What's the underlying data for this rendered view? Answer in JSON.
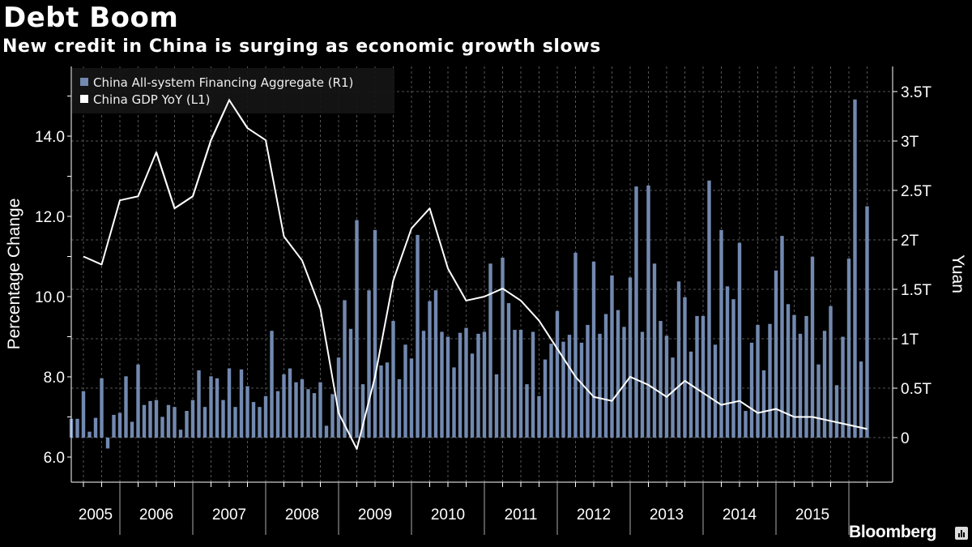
{
  "chart_data": {
    "type": "bar+line",
    "title": "Debt Boom",
    "subtitle": "New credit in China is surging as economic growth slows",
    "source": "Bloomberg",
    "xlabel": "",
    "ylabel_left": "Percentage Change",
    "ylabel_right": "Yuan",
    "ylim_left": [
      5.4,
      15.7
    ],
    "ylim_right": [
      -0.45,
      3.75
    ],
    "left_ticks": [
      "6.0",
      "8.0",
      "10.0",
      "12.0",
      "14.0"
    ],
    "left_tick_values": [
      6,
      8,
      10,
      12,
      14
    ],
    "right_ticks": [
      "0",
      "0.5T",
      "1T",
      "1.5T",
      "2T",
      "2.5T",
      "3T",
      "3.5T"
    ],
    "right_tick_values": [
      0,
      0.5,
      1,
      1.5,
      2,
      2.5,
      3,
      3.5
    ],
    "x_ticks": [
      "2005",
      "2006",
      "2007",
      "2008",
      "2009",
      "2010",
      "2011",
      "2012",
      "2013",
      "2014",
      "2015"
    ],
    "grid": true,
    "legend_position": "top-left",
    "series": [
      {
        "name": "China All-system Financing Aggregate  (R1)",
        "type": "bar",
        "axis": "right",
        "unit": "trillion yuan",
        "frequency": "monthly",
        "start": "2005-04",
        "color": "#7289b0",
        "values": [
          0.19,
          0.19,
          0.47,
          0.06,
          0.2,
          0.6,
          -0.11,
          0.23,
          0.25,
          0.62,
          0.16,
          0.74,
          0.33,
          0.37,
          0.38,
          0.21,
          0.33,
          0.31,
          0.08,
          0.27,
          0.38,
          0.68,
          0.31,
          0.62,
          0.6,
          0.38,
          0.7,
          0.31,
          0.69,
          0.52,
          0.36,
          0.31,
          0.42,
          1.08,
          0.47,
          0.64,
          0.7,
          0.56,
          0.59,
          0.49,
          0.45,
          0.56,
          0.12,
          0.44,
          0.81,
          1.39,
          1.1,
          2.2,
          0.54,
          1.49,
          2.1,
          0.73,
          0.76,
          1.18,
          0.59,
          0.94,
          0.8,
          2.05,
          1.08,
          1.38,
          1.49,
          1.07,
          1.02,
          0.71,
          1.06,
          1.11,
          0.85,
          1.05,
          1.07,
          1.76,
          0.64,
          1.82,
          1.36,
          1.09,
          1.09,
          0.54,
          1.07,
          0.42,
          0.79,
          0.95,
          1.28,
          0.97,
          1.04,
          1.87,
          0.96,
          1.14,
          1.78,
          1.05,
          1.25,
          1.64,
          1.29,
          1.12,
          1.62,
          2.54,
          1.07,
          2.55,
          1.76,
          1.18,
          1.03,
          0.81,
          1.58,
          1.42,
          0.87,
          1.23,
          1.23,
          2.6,
          0.94,
          2.1,
          1.53,
          1.4,
          1.97,
          0.27,
          0.96,
          1.14,
          0.68,
          1.15,
          1.69,
          2.04,
          1.35,
          1.24,
          1.05,
          1.23,
          1.83,
          0.74,
          1.08,
          1.33,
          0.53,
          1.02,
          1.81,
          3.42,
          0.77,
          2.34
        ]
      },
      {
        "name": "China GDP YoY (L1)",
        "type": "line",
        "axis": "left",
        "unit": "%",
        "frequency": "quarterly",
        "start": "2005-Q2",
        "color": "#ffffff",
        "values": [
          11.0,
          10.8,
          12.4,
          12.5,
          13.6,
          12.2,
          12.5,
          13.9,
          14.9,
          14.2,
          13.9,
          11.5,
          10.9,
          9.7,
          7.1,
          6.2,
          8.0,
          10.4,
          11.7,
          12.2,
          10.7,
          9.9,
          10.0,
          10.2,
          9.9,
          9.4,
          8.7,
          8.0,
          7.5,
          7.4,
          8.0,
          7.8,
          7.5,
          7.9,
          7.6,
          7.3,
          7.4,
          7.1,
          7.2,
          7.0,
          7.0,
          6.9,
          6.8,
          6.7
        ]
      }
    ]
  }
}
